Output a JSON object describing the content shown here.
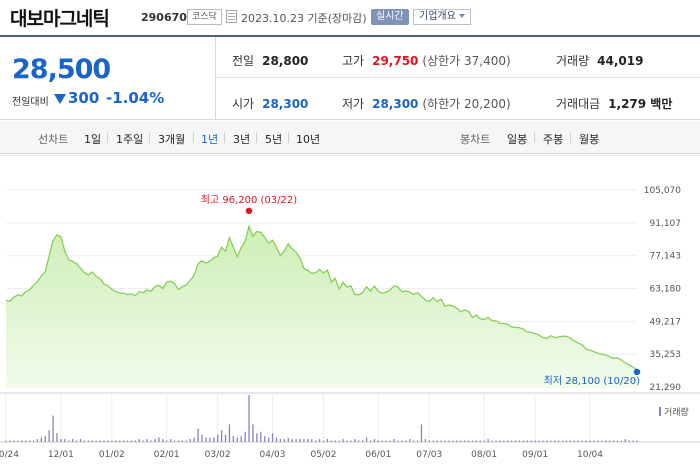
{
  "header": {
    "stock_name": "대보마그네틱",
    "stock_code": "290670",
    "market_badge": "코스닥",
    "date_text": "2023.10.23 기준(장마감)",
    "realtime_badge": "실시간",
    "company_button": "기업개요"
  },
  "quote": {
    "price": "28,500",
    "change_label": "전일대비",
    "change_value": "300",
    "change_rate": "-1.04%",
    "prev_close_label": "전일",
    "prev_close": "28,800",
    "high_label": "고가",
    "high": "29,750",
    "upper_limit": "(상한가 37,400)",
    "volume_label": "거래량",
    "volume": "44,019",
    "open_label": "시가",
    "open": "28,300",
    "low_label": "저가",
    "low": "28,300",
    "lower_limit": "(하한가 20,200)",
    "trade_value_label": "거래대금",
    "trade_value": "1,279 백만",
    "colors": {
      "up": "#e0131e",
      "down": "#1a63c9"
    }
  },
  "range_bar": {
    "line_chart_label": "선차트",
    "line_options": [
      "1일",
      "1주일",
      "3개월",
      "1년",
      "3년",
      "5년",
      "10년"
    ],
    "active_option": "1년",
    "candle_chart_label": "봉차트",
    "candle_options": [
      "일봉",
      "주봉",
      "월봉"
    ]
  },
  "chart_data": {
    "type": "area",
    "x_ticks": [
      "10/24",
      "12/01",
      "01/02",
      "02/01",
      "03/02",
      "04/03",
      "05/02",
      "06/01",
      "07/03",
      "08/01",
      "09/01",
      "10/04"
    ],
    "y_ticks": [
      "105,070",
      "91,107",
      "77,143",
      "63,180",
      "49,217",
      "35,253",
      "21,290"
    ],
    "ylim": [
      21290,
      105070
    ],
    "volume_label": "거래량",
    "max_annotation": "최고 96,200 (03/22)",
    "min_annotation": "최저 28,100 (10/20)",
    "colors": {
      "line": "#86cf5a",
      "fill_top": "#cdeeb6",
      "fill_bottom": "#f2fbec",
      "max_marker": "#e0131e",
      "min_marker": "#1a63c9",
      "volume_bar": "#8e80bf"
    },
    "series": [
      {
        "values": [
          58100,
          57800,
          59500,
          60500,
          60000,
          61800,
          62600,
          64400,
          66100,
          68500,
          70300,
          76900,
          83600,
          86000,
          85200,
          79100,
          75400,
          74700,
          73800,
          71800,
          69900,
          69000,
          70200,
          68400,
          67300,
          65100,
          64300,
          62900,
          61800,
          61300,
          61100,
          60600,
          60900,
          60100,
          61800,
          61500,
          62600,
          62000,
          64000,
          64600,
          63200,
          65900,
          66300,
          65400,
          62700,
          64000,
          64700,
          66600,
          68800,
          73700,
          75000,
          74000,
          74800,
          76100,
          77000,
          80800,
          79000,
          84800,
          80800,
          76700,
          80600,
          83200,
          89600,
          85400,
          87400,
          87000,
          85000,
          82500,
          83700,
          80800,
          77200,
          79100,
          82200,
          80100,
          78700,
          76200,
          71700,
          70900,
          69600,
          69900,
          71200,
          69800,
          71000,
          65800,
          67500,
          63000,
          65800,
          63800,
          64300,
          60700,
          60500,
          61500,
          63900,
          62100,
          64200,
          62000,
          61200,
          61600,
          62600,
          64300,
          63800,
          61800,
          62100,
          61700,
          60700,
          61400,
          59800,
          58300,
          57600,
          59300,
          57600,
          58600,
          55700,
          56100,
          55800,
          54900,
          53300,
          54000,
          53500,
          50800,
          51900,
          50300,
          50000,
          50900,
          49500,
          49400,
          48300,
          48300,
          47900,
          46800,
          46700,
          46500,
          45900,
          44700,
          44500,
          44000,
          43400,
          42300,
          42000,
          43100,
          42300,
          42600,
          42900,
          42800,
          42100,
          40800,
          39900,
          39300,
          37400,
          36900,
          36300,
          35700,
          35200,
          34900,
          34200,
          33500,
          33700,
          32800,
          31500,
          30700,
          29700,
          28500
        ]
      },
      {
        "name": "거래량",
        "values": [
          1,
          1,
          1,
          1,
          1,
          1,
          1,
          1,
          2,
          3,
          4,
          8,
          18,
          6,
          2,
          2,
          1,
          2,
          1,
          2,
          1,
          1,
          1,
          1,
          1,
          1,
          1,
          1,
          1,
          1,
          1,
          1,
          1,
          1,
          2,
          1,
          2,
          1,
          2,
          3,
          2,
          1,
          2,
          1,
          1,
          1,
          1,
          2,
          3,
          9,
          5,
          3,
          3,
          3,
          5,
          8,
          5,
          12,
          4,
          3,
          4,
          7,
          32,
          12,
          6,
          7,
          4,
          3,
          6,
          3,
          2,
          2,
          3,
          2,
          2,
          2,
          2,
          2,
          2,
          1,
          2,
          1,
          2,
          1,
          1,
          1,
          2,
          1,
          1,
          2,
          1,
          1,
          3,
          1,
          2,
          1,
          1,
          1,
          1,
          2,
          1,
          1,
          1,
          2,
          1,
          1,
          12,
          2,
          1,
          1,
          1,
          1,
          1,
          1,
          1,
          1,
          1,
          1,
          1,
          1,
          1,
          1,
          1,
          2,
          1,
          1,
          1,
          1,
          1,
          1,
          1,
          1,
          1,
          1,
          1,
          1,
          1,
          1,
          1,
          1,
          1,
          1,
          1,
          1,
          1,
          1,
          1,
          1,
          1,
          1,
          1,
          1,
          1,
          1,
          1,
          1,
          1,
          1,
          2,
          1,
          1,
          1
        ]
      }
    ]
  }
}
